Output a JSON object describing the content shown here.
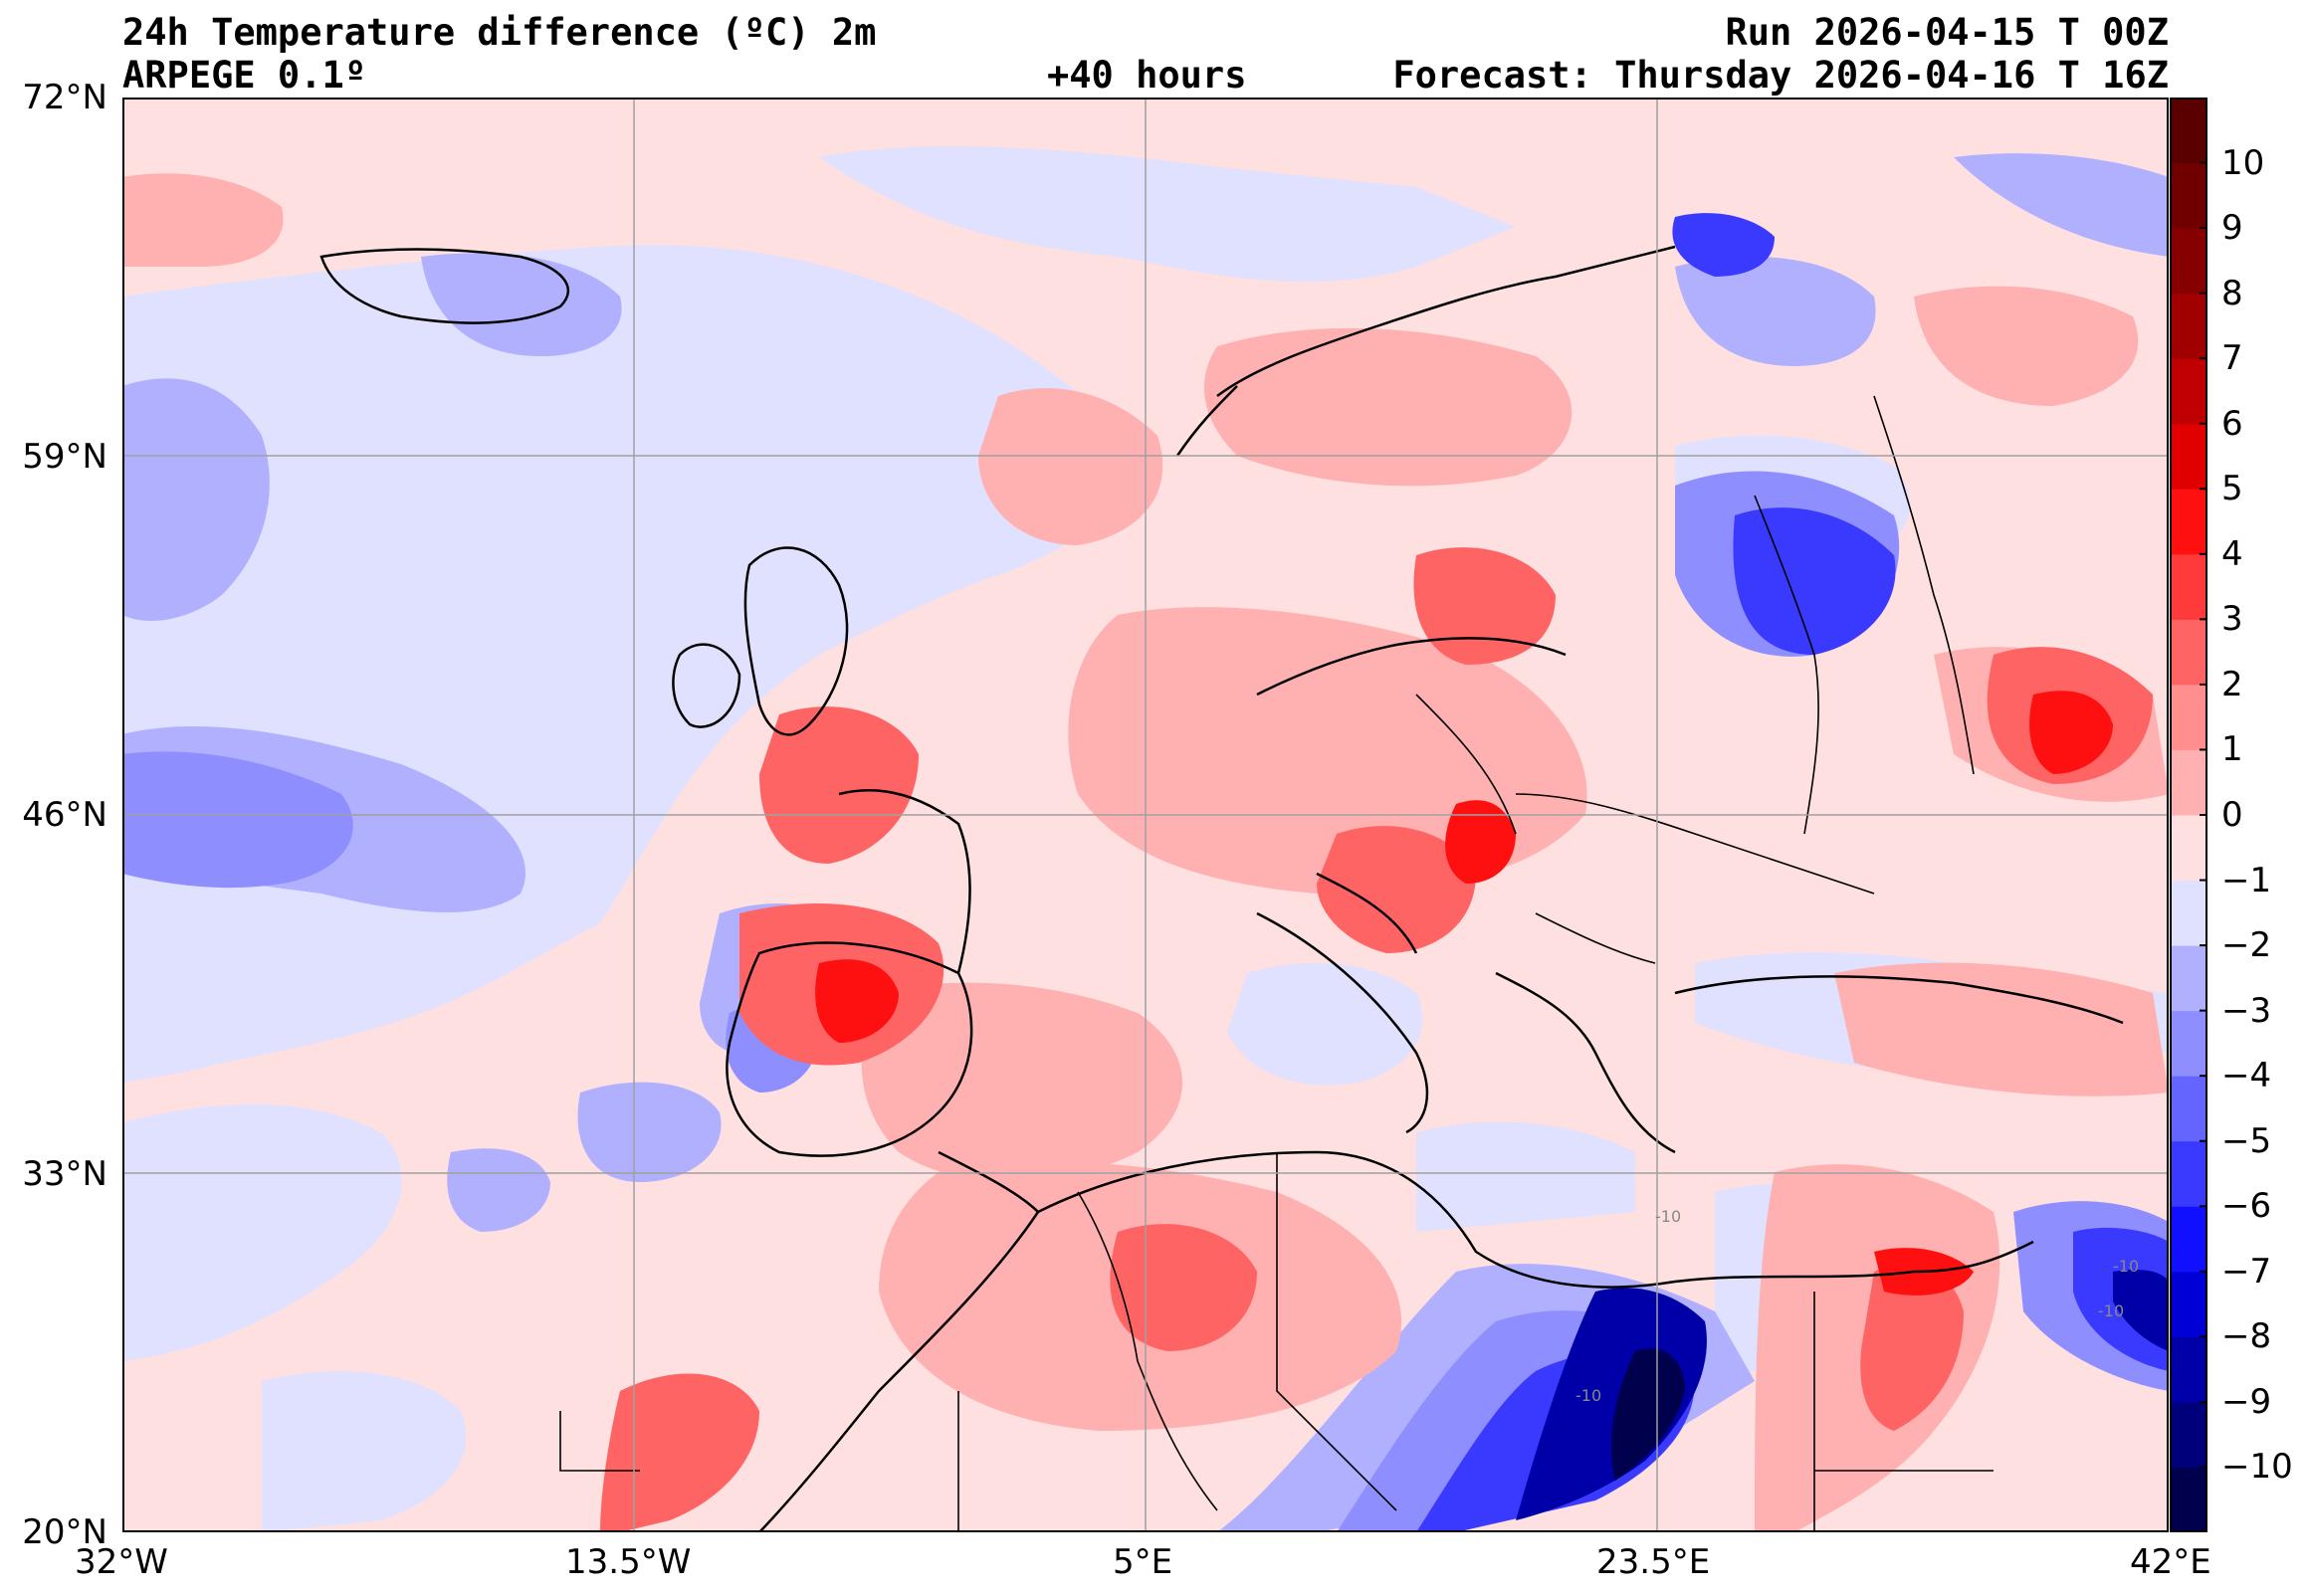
{
  "header": {
    "title": "24h Temperature difference (ºC) 2m",
    "model": "ARPEGE 0.1º",
    "lead_time": "+40 hours",
    "run": "Run 2026-04-15 T 00Z",
    "forecast": "Forecast: Thursday 2026-04-16 T 16Z"
  },
  "map": {
    "lon_range": [
      -32,
      42
    ],
    "lat_range": [
      20,
      72
    ],
    "lat_ticks": [
      "72°N",
      "59°N",
      "46°N",
      "33°N",
      "20°N"
    ],
    "lon_ticks": [
      "32°W",
      "13.5°W",
      "5°E",
      "23.5°E",
      "42°E"
    ],
    "contour_labels": [
      "-10",
      "-10",
      "-10",
      "-10"
    ]
  },
  "colorbar": {
    "levels": [
      -11,
      -10,
      -9,
      -8,
      -7,
      -6,
      -5,
      -4,
      -3,
      -2,
      -1,
      0,
      1,
      2,
      3,
      4,
      5,
      6,
      7,
      8,
      9,
      10,
      11
    ],
    "tick_labels": [
      "10",
      "9",
      "8",
      "7",
      "6",
      "5",
      "4",
      "3",
      "2",
      "1",
      "0",
      "−1",
      "−2",
      "−3",
      "−4",
      "−5",
      "−6",
      "−7",
      "−8",
      "−9",
      "−10"
    ],
    "colors": [
      "#00004c",
      "#00007a",
      "#0000a8",
      "#0000d6",
      "#1010ff",
      "#3a3aff",
      "#6464ff",
      "#8e8eff",
      "#b0b0ff",
      "#e0e0ff",
      "#ffe0e0",
      "#ffb0b0",
      "#ff8e8e",
      "#ff6464",
      "#ff3a3a",
      "#ff1010",
      "#e00000",
      "#c00000",
      "#a00000",
      "#860000",
      "#700000",
      "#5a0000"
    ]
  }
}
